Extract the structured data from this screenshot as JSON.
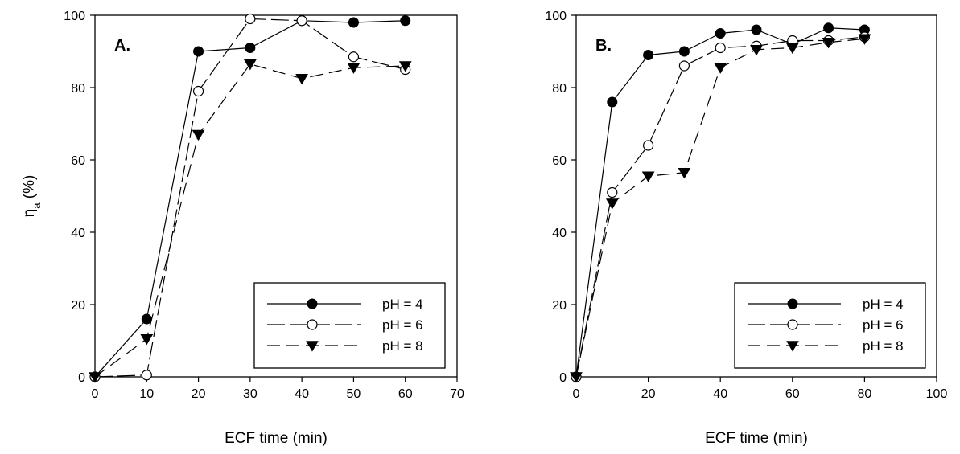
{
  "figure": {
    "ylabel_symbol": "η",
    "ylabel_sub": "a",
    "ylabel_unit": " (%)"
  },
  "chart_data": [
    {
      "type": "line",
      "panel_label": "A.",
      "xlabel": "ECF time (min)",
      "ylabel": "ηa (%)",
      "xlim": [
        0,
        70
      ],
      "ylim": [
        0,
        100
      ],
      "xticks": [
        0,
        10,
        20,
        30,
        40,
        50,
        60,
        70
      ],
      "yticks": [
        0,
        20,
        40,
        60,
        80,
        100
      ],
      "x": [
        0,
        10,
        20,
        30,
        40,
        50,
        60
      ],
      "grid": false,
      "legend_position": "bottom-right",
      "series": [
        {
          "name": "pH = 4",
          "marker": "filled-circle",
          "dash": "solid",
          "values": [
            0,
            16,
            90,
            91,
            98.5,
            98,
            98.5
          ]
        },
        {
          "name": "pH = 6",
          "marker": "open-circle",
          "dash": "long-dash",
          "values": [
            0,
            0.5,
            79,
            99,
            98.5,
            88.5,
            85
          ]
        },
        {
          "name": "pH = 8",
          "marker": "filled-triangle-down",
          "dash": "dash",
          "values": [
            0,
            10.5,
            67,
            86.5,
            82.5,
            85.5,
            86
          ]
        }
      ]
    },
    {
      "type": "line",
      "panel_label": "B.",
      "xlabel": "ECF time (min)",
      "ylabel": "ηa (%)",
      "xlim": [
        0,
        100
      ],
      "ylim": [
        0,
        100
      ],
      "xticks": [
        0,
        20,
        40,
        60,
        80,
        100
      ],
      "yticks": [
        0,
        20,
        40,
        60,
        80,
        100
      ],
      "x": [
        0,
        10,
        20,
        30,
        40,
        50,
        60,
        70,
        80
      ],
      "grid": false,
      "legend_position": "bottom-right",
      "series": [
        {
          "name": "pH = 4",
          "marker": "filled-circle",
          "dash": "solid",
          "values": [
            0,
            76,
            89,
            90,
            95,
            96,
            92,
            96.5,
            96
          ]
        },
        {
          "name": "pH = 6",
          "marker": "open-circle",
          "dash": "long-dash",
          "values": [
            0,
            51,
            64,
            86,
            91,
            91.5,
            93,
            93,
            94
          ]
        },
        {
          "name": "pH = 8",
          "marker": "filled-triangle-down",
          "dash": "dash",
          "values": [
            0,
            48,
            55.5,
            56.5,
            85.5,
            90.5,
            91,
            92.5,
            93.5
          ]
        }
      ]
    }
  ]
}
